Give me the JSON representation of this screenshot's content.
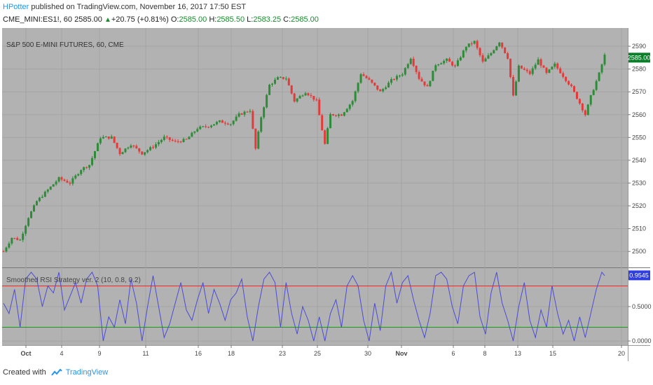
{
  "header": {
    "author": "HPotter",
    "published_text": "published on TradingView.com, November 16, 2017 17:50 EST",
    "symbol": "CME_MINI:ES1!, 60",
    "last": "2585.00",
    "change": "+20.75 (+0.81%)",
    "o_label": "O:",
    "o_value": "2585.00",
    "h_label": "H:",
    "h_value": "2585.50",
    "l_label": "L:",
    "l_value": "2583.25",
    "c_label": "C:",
    "c_value": "2585.00"
  },
  "footer": {
    "created_with": "Created with",
    "brand": "TradingView"
  },
  "colors": {
    "plot_bg": "#b2b2b2",
    "bull": "#2e8b38",
    "bear": "#e53a3a",
    "rsi": "#4b4bd6",
    "upper_line": "#ff2020",
    "lower_line": "#10a010",
    "price_badge": "#0a7f2a",
    "rsi_badge": "#2f3ee0"
  },
  "chart_data": [
    {
      "type": "candlestick",
      "title": "S&P 500 E-MINI FUTURES, 60, CME",
      "ylim": [
        2493,
        2598
      ],
      "y_ticks": [
        2500,
        2510,
        2520,
        2530,
        2540,
        2550,
        2560,
        2570,
        2580,
        2590
      ],
      "last_price_label": "2585.00",
      "x_ticks": [
        "Oct",
        "4",
        "9",
        "11",
        "16",
        "18",
        "23",
        "25",
        "30",
        "Nov",
        "6",
        "8",
        "13",
        "15",
        "20"
      ],
      "grid": true,
      "close_path": [
        {
          "x": 0,
          "y": 2500
        },
        {
          "x": 3,
          "y": 2506
        },
        {
          "x": 6,
          "y": 2505
        },
        {
          "x": 9,
          "y": 2515
        },
        {
          "x": 12,
          "y": 2522
        },
        {
          "x": 16,
          "y": 2527
        },
        {
          "x": 20,
          "y": 2532
        },
        {
          "x": 24,
          "y": 2530
        },
        {
          "x": 28,
          "y": 2536
        },
        {
          "x": 31,
          "y": 2538
        },
        {
          "x": 35,
          "y": 2550
        },
        {
          "x": 39,
          "y": 2550
        },
        {
          "x": 42,
          "y": 2543
        },
        {
          "x": 46,
          "y": 2547
        },
        {
          "x": 50,
          "y": 2543
        },
        {
          "x": 54,
          "y": 2546
        },
        {
          "x": 58,
          "y": 2550
        },
        {
          "x": 62,
          "y": 2548
        },
        {
          "x": 66,
          "y": 2549
        },
        {
          "x": 70,
          "y": 2554
        },
        {
          "x": 74,
          "y": 2555
        },
        {
          "x": 78,
          "y": 2557
        },
        {
          "x": 82,
          "y": 2556
        },
        {
          "x": 85,
          "y": 2560
        },
        {
          "x": 89,
          "y": 2562
        },
        {
          "x": 91,
          "y": 2545
        },
        {
          "x": 93,
          "y": 2559
        },
        {
          "x": 96,
          "y": 2573
        },
        {
          "x": 99,
          "y": 2576
        },
        {
          "x": 102,
          "y": 2576
        },
        {
          "x": 105,
          "y": 2566
        },
        {
          "x": 109,
          "y": 2570
        },
        {
          "x": 113,
          "y": 2566
        },
        {
          "x": 116,
          "y": 2547
        },
        {
          "x": 118,
          "y": 2560
        },
        {
          "x": 122,
          "y": 2560
        },
        {
          "x": 126,
          "y": 2566
        },
        {
          "x": 129,
          "y": 2578
        },
        {
          "x": 132,
          "y": 2575
        },
        {
          "x": 136,
          "y": 2570
        },
        {
          "x": 140,
          "y": 2575
        },
        {
          "x": 144,
          "y": 2578
        },
        {
          "x": 147,
          "y": 2585
        },
        {
          "x": 150,
          "y": 2576
        },
        {
          "x": 153,
          "y": 2572
        },
        {
          "x": 156,
          "y": 2582
        },
        {
          "x": 160,
          "y": 2584
        },
        {
          "x": 163,
          "y": 2581
        },
        {
          "x": 167,
          "y": 2590
        },
        {
          "x": 170,
          "y": 2592
        },
        {
          "x": 173,
          "y": 2583
        },
        {
          "x": 176,
          "y": 2587
        },
        {
          "x": 179,
          "y": 2592
        },
        {
          "x": 182,
          "y": 2585
        },
        {
          "x": 184,
          "y": 2568
        },
        {
          "x": 186,
          "y": 2581
        },
        {
          "x": 190,
          "y": 2578
        },
        {
          "x": 193,
          "y": 2584
        },
        {
          "x": 196,
          "y": 2578
        },
        {
          "x": 199,
          "y": 2582
        },
        {
          "x": 202,
          "y": 2577
        },
        {
          "x": 205,
          "y": 2572
        },
        {
          "x": 208,
          "y": 2565
        },
        {
          "x": 210,
          "y": 2560
        },
        {
          "x": 212,
          "y": 2568
        },
        {
          "x": 215,
          "y": 2578
        },
        {
          "x": 217,
          "y": 2586
        }
      ]
    },
    {
      "type": "line",
      "title": "Smoothed RSI Strategy ver. 2 (10, 0.8, 0.2)",
      "ylim": [
        -0.06,
        1.06
      ],
      "y_ticks": [
        "0.0000",
        "0.5000"
      ],
      "y_tick_values": [
        0,
        0.5
      ],
      "upper_level": 0.8,
      "lower_level": 0.2,
      "last_value_label": "0.9545",
      "series": [
        {
          "points": [
            {
              "x": 0,
              "y": 0.55
            },
            {
              "x": 2,
              "y": 0.4
            },
            {
              "x": 4,
              "y": 0.75
            },
            {
              "x": 6,
              "y": 0.2
            },
            {
              "x": 8,
              "y": 0.9
            },
            {
              "x": 10,
              "y": 1.0
            },
            {
              "x": 12,
              "y": 0.9
            },
            {
              "x": 14,
              "y": 0.5
            },
            {
              "x": 16,
              "y": 0.8
            },
            {
              "x": 18,
              "y": 0.7
            },
            {
              "x": 20,
              "y": 1.0
            },
            {
              "x": 22,
              "y": 0.45
            },
            {
              "x": 24,
              "y": 0.65
            },
            {
              "x": 26,
              "y": 0.85
            },
            {
              "x": 28,
              "y": 0.55
            },
            {
              "x": 30,
              "y": 0.9
            },
            {
              "x": 32,
              "y": 1.0
            },
            {
              "x": 34,
              "y": 0.8
            },
            {
              "x": 36,
              "y": 0.0
            },
            {
              "x": 38,
              "y": 0.35
            },
            {
              "x": 40,
              "y": 0.2
            },
            {
              "x": 42,
              "y": 0.6
            },
            {
              "x": 44,
              "y": 0.25
            },
            {
              "x": 46,
              "y": 0.9
            },
            {
              "x": 48,
              "y": 0.55
            },
            {
              "x": 50,
              "y": 0.0
            },
            {
              "x": 52,
              "y": 0.5
            },
            {
              "x": 54,
              "y": 0.95
            },
            {
              "x": 56,
              "y": 0.5
            },
            {
              "x": 58,
              "y": 0.05
            },
            {
              "x": 60,
              "y": 0.25
            },
            {
              "x": 62,
              "y": 0.55
            },
            {
              "x": 64,
              "y": 0.85
            },
            {
              "x": 66,
              "y": 0.45
            },
            {
              "x": 68,
              "y": 0.3
            },
            {
              "x": 70,
              "y": 0.6
            },
            {
              "x": 72,
              "y": 0.85
            },
            {
              "x": 74,
              "y": 0.4
            },
            {
              "x": 76,
              "y": 0.75
            },
            {
              "x": 78,
              "y": 0.55
            },
            {
              "x": 80,
              "y": 0.3
            },
            {
              "x": 82,
              "y": 0.6
            },
            {
              "x": 84,
              "y": 0.7
            },
            {
              "x": 86,
              "y": 0.9
            },
            {
              "x": 88,
              "y": 0.35
            },
            {
              "x": 90,
              "y": 0.0
            },
            {
              "x": 92,
              "y": 0.5
            },
            {
              "x": 94,
              "y": 0.9
            },
            {
              "x": 96,
              "y": 1.0
            },
            {
              "x": 98,
              "y": 0.85
            },
            {
              "x": 100,
              "y": 0.2
            },
            {
              "x": 102,
              "y": 0.85
            },
            {
              "x": 104,
              "y": 0.4
            },
            {
              "x": 106,
              "y": 0.1
            },
            {
              "x": 108,
              "y": 0.5
            },
            {
              "x": 110,
              "y": 0.3
            },
            {
              "x": 112,
              "y": 0.0
            },
            {
              "x": 114,
              "y": 0.35
            },
            {
              "x": 116,
              "y": 0.0
            },
            {
              "x": 118,
              "y": 0.4
            },
            {
              "x": 120,
              "y": 0.6
            },
            {
              "x": 122,
              "y": 0.2
            },
            {
              "x": 124,
              "y": 0.8
            },
            {
              "x": 126,
              "y": 0.95
            },
            {
              "x": 128,
              "y": 0.8
            },
            {
              "x": 130,
              "y": 0.3
            },
            {
              "x": 132,
              "y": 0.0
            },
            {
              "x": 134,
              "y": 0.55
            },
            {
              "x": 136,
              "y": 0.15
            },
            {
              "x": 138,
              "y": 0.8
            },
            {
              "x": 140,
              "y": 1.0
            },
            {
              "x": 142,
              "y": 0.55
            },
            {
              "x": 144,
              "y": 0.85
            },
            {
              "x": 146,
              "y": 0.95
            },
            {
              "x": 148,
              "y": 0.6
            },
            {
              "x": 150,
              "y": 0.3
            },
            {
              "x": 152,
              "y": 0.05
            },
            {
              "x": 154,
              "y": 0.4
            },
            {
              "x": 156,
              "y": 0.95
            },
            {
              "x": 158,
              "y": 1.0
            },
            {
              "x": 160,
              "y": 0.9
            },
            {
              "x": 162,
              "y": 0.5
            },
            {
              "x": 164,
              "y": 0.25
            },
            {
              "x": 166,
              "y": 0.8
            },
            {
              "x": 168,
              "y": 0.95
            },
            {
              "x": 170,
              "y": 1.0
            },
            {
              "x": 172,
              "y": 0.35
            },
            {
              "x": 174,
              "y": 0.1
            },
            {
              "x": 176,
              "y": 0.7
            },
            {
              "x": 178,
              "y": 1.0
            },
            {
              "x": 180,
              "y": 0.55
            },
            {
              "x": 182,
              "y": 0.3
            },
            {
              "x": 184,
              "y": 0.0
            },
            {
              "x": 186,
              "y": 0.5
            },
            {
              "x": 188,
              "y": 0.85
            },
            {
              "x": 190,
              "y": 0.3
            },
            {
              "x": 192,
              "y": 0.05
            },
            {
              "x": 194,
              "y": 0.45
            },
            {
              "x": 196,
              "y": 0.2
            },
            {
              "x": 198,
              "y": 0.8
            },
            {
              "x": 200,
              "y": 0.4
            },
            {
              "x": 202,
              "y": 0.1
            },
            {
              "x": 204,
              "y": 0.3
            },
            {
              "x": 206,
              "y": 0.0
            },
            {
              "x": 208,
              "y": 0.35
            },
            {
              "x": 210,
              "y": 0.05
            },
            {
              "x": 212,
              "y": 0.4
            },
            {
              "x": 214,
              "y": 0.75
            },
            {
              "x": 216,
              "y": 1.0
            },
            {
              "x": 217,
              "y": 0.95
            }
          ]
        }
      ]
    }
  ]
}
